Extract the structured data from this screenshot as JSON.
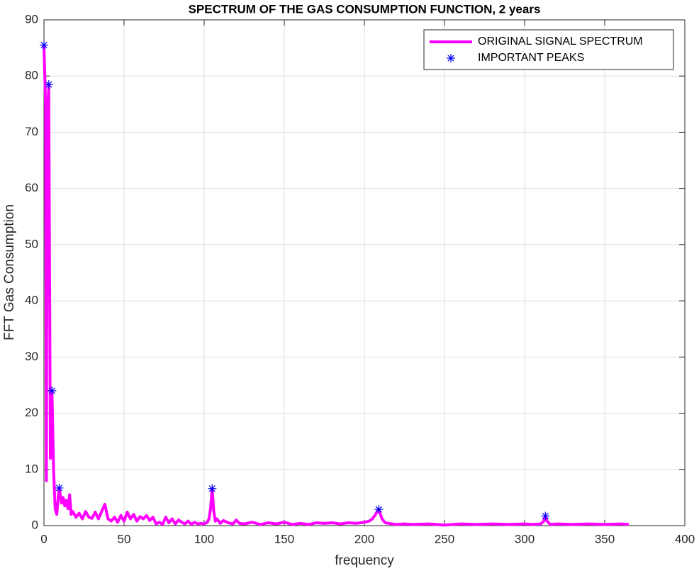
{
  "chart_data": {
    "type": "line",
    "title": "SPECTRUM OF THE GAS CONSUMPTION FUNCTION, 2 years",
    "xlabel": "frequency",
    "ylabel": "FFT Gas Consumption",
    "xlim": [
      0,
      400
    ],
    "ylim": [
      0,
      90
    ],
    "xticks": [
      0,
      50,
      100,
      150,
      200,
      250,
      300,
      350,
      400
    ],
    "yticks": [
      0,
      10,
      20,
      30,
      40,
      50,
      60,
      70,
      80,
      90
    ],
    "grid": true,
    "legend": "upper right",
    "series": [
      {
        "name": "ORIGINAL SIGNAL SPECTRUM",
        "color": "#ff00ff",
        "marker": "none",
        "x": [
          0,
          1,
          1.5,
          2,
          3,
          4,
          5,
          6,
          7,
          8,
          9.5,
          11,
          12,
          13,
          14,
          15,
          16,
          17,
          18,
          20,
          22,
          24,
          26,
          28,
          30,
          32,
          34,
          36,
          38,
          40,
          42,
          44,
          46,
          48,
          50,
          52,
          54,
          56,
          58,
          60,
          62,
          64,
          66,
          68,
          70,
          72,
          74,
          76,
          78,
          80,
          82,
          84,
          86,
          88,
          90,
          92,
          94,
          96,
          98,
          100,
          102,
          103,
          104,
          105,
          106,
          107,
          108,
          110,
          112,
          115,
          118,
          120,
          122,
          125,
          130,
          135,
          140,
          145,
          150,
          155,
          160,
          165,
          170,
          175,
          180,
          185,
          190,
          195,
          200,
          203,
          205,
          207,
          208,
          209,
          210,
          211,
          213,
          215,
          220,
          225,
          230,
          240,
          250,
          260,
          270,
          280,
          290,
          300,
          305,
          310,
          312,
          313,
          314,
          316,
          320,
          330,
          340,
          350,
          360,
          365
        ],
        "values": [
          85.5,
          75,
          8,
          70,
          78.5,
          12,
          24,
          10,
          3,
          2,
          6.7,
          4,
          5,
          3.5,
          4.5,
          3,
          5.5,
          2,
          2.5,
          1.5,
          2.2,
          1.2,
          2.5,
          1.5,
          1.3,
          2.4,
          1.2,
          2.5,
          3.8,
          1.2,
          0.8,
          1.5,
          0.6,
          1.8,
          0.8,
          2.4,
          1.2,
          2,
          0.8,
          1.6,
          1.2,
          1.8,
          0.9,
          1.5,
          0.3,
          0.6,
          0.2,
          1.5,
          0.5,
          1.2,
          0.3,
          1,
          0.6,
          0.3,
          0.8,
          0.2,
          0.6,
          0.3,
          0.4,
          0.3,
          0.6,
          1.2,
          3,
          6.6,
          2.5,
          0.8,
          1.2,
          0.4,
          0.9,
          0.5,
          0.3,
          1,
          0.4,
          0.3,
          0.6,
          0.2,
          0.5,
          0.3,
          0.6,
          0.2,
          0.4,
          0.2,
          0.5,
          0.4,
          0.5,
          0.3,
          0.5,
          0.4,
          0.6,
          0.8,
          1.2,
          2,
          2.5,
          2.9,
          2,
          1.2,
          0.5,
          0.4,
          0.2,
          0.3,
          0.2,
          0.3,
          0.1,
          0.3,
          0.2,
          0.3,
          0.2,
          0.3,
          0.2,
          0.3,
          0.8,
          1.7,
          0.8,
          0.2,
          0.3,
          0.2,
          0.3,
          0.2,
          0.3,
          0.2
        ]
      },
      {
        "name": "IMPORTANT PEAKS",
        "color": "#0000ff",
        "marker": "*",
        "x": [
          0,
          3,
          5,
          9.5,
          105,
          209,
          313
        ],
        "values": [
          85.5,
          78.5,
          24,
          6.7,
          6.6,
          2.9,
          1.7
        ]
      }
    ]
  }
}
